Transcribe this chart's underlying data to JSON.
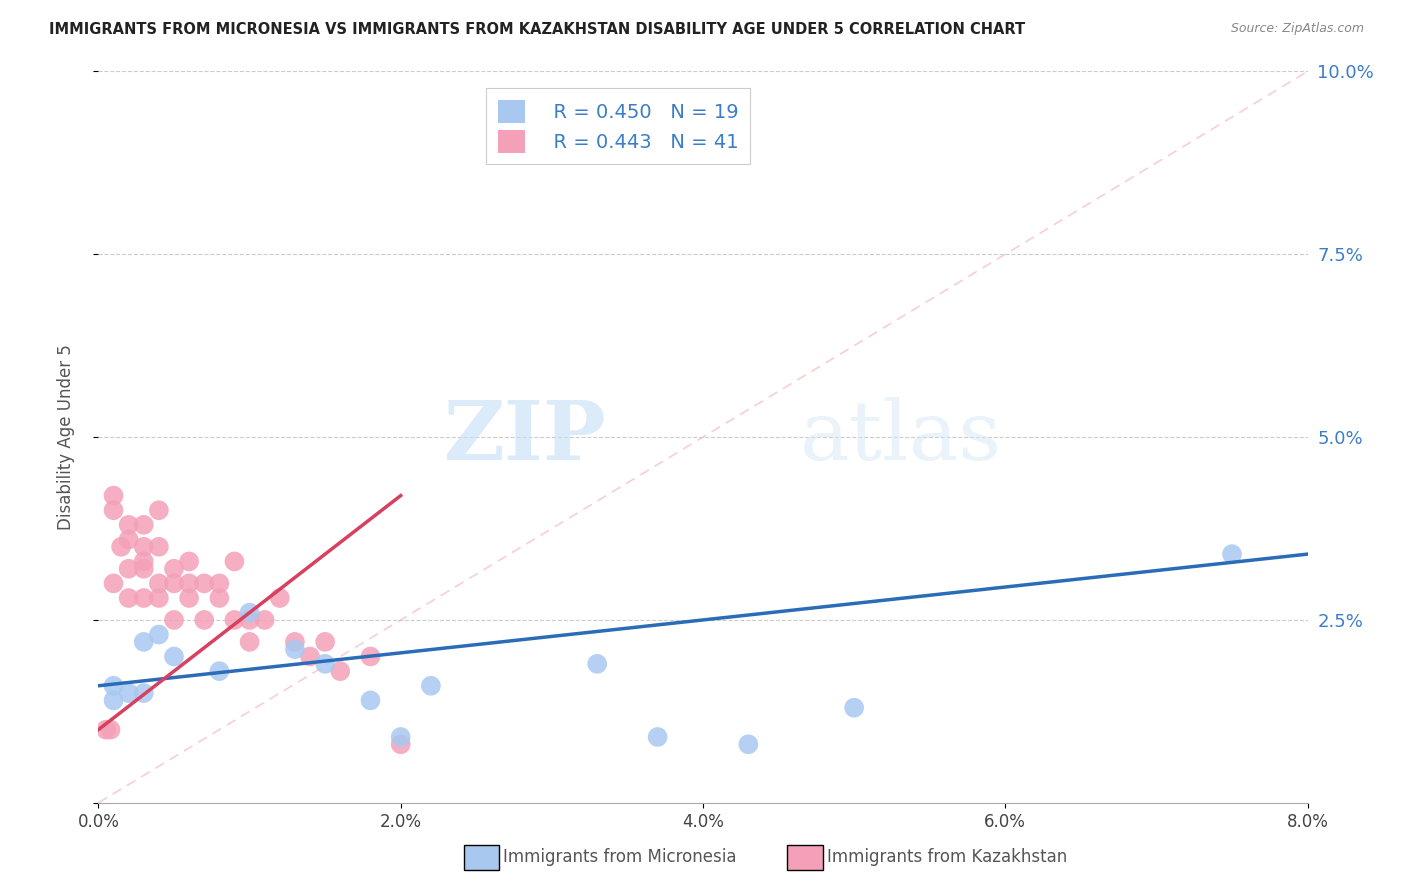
{
  "title": "IMMIGRANTS FROM MICRONESIA VS IMMIGRANTS FROM KAZAKHSTAN DISABILITY AGE UNDER 5 CORRELATION CHART",
  "source": "Source: ZipAtlas.com",
  "ylabel": "Disability Age Under 5",
  "xlim": [
    0.0,
    0.08
  ],
  "ylim": [
    0.0,
    0.1
  ],
  "xticks": [
    0.0,
    0.02,
    0.04,
    0.06,
    0.08
  ],
  "yticks": [
    0.0,
    0.025,
    0.05,
    0.075,
    0.1
  ],
  "xtick_labels": [
    "0.0%",
    "2.0%",
    "4.0%",
    "6.0%",
    "8.0%"
  ],
  "right_ytick_labels": [
    "",
    "2.5%",
    "5.0%",
    "7.5%",
    "10.0%"
  ],
  "micronesia_color": "#A8C8F0",
  "kazakhstan_color": "#F4A0B8",
  "micronesia_label": "Immigrants from Micronesia",
  "kazakhstan_label": "Immigrants from Kazakhstan",
  "micronesia_R": 0.45,
  "micronesia_N": 19,
  "kazakhstan_R": 0.443,
  "kazakhstan_N": 41,
  "trend_micronesia_color": "#2B6CB8",
  "trend_kazakhstan_color": "#D84060",
  "watermark_color": "#D8EAF8",
  "micronesia_x": [
    0.001,
    0.001,
    0.002,
    0.003,
    0.003,
    0.004,
    0.005,
    0.008,
    0.01,
    0.013,
    0.015,
    0.018,
    0.02,
    0.022,
    0.033,
    0.037,
    0.043,
    0.05,
    0.075
  ],
  "micronesia_y": [
    0.014,
    0.016,
    0.015,
    0.015,
    0.022,
    0.023,
    0.02,
    0.018,
    0.026,
    0.021,
    0.019,
    0.014,
    0.009,
    0.016,
    0.019,
    0.009,
    0.008,
    0.013,
    0.034
  ],
  "kazakhstan_x": [
    0.0005,
    0.0008,
    0.001,
    0.001,
    0.001,
    0.0015,
    0.002,
    0.002,
    0.002,
    0.002,
    0.003,
    0.003,
    0.003,
    0.003,
    0.003,
    0.004,
    0.004,
    0.004,
    0.004,
    0.005,
    0.005,
    0.005,
    0.006,
    0.006,
    0.006,
    0.007,
    0.007,
    0.008,
    0.008,
    0.009,
    0.009,
    0.01,
    0.01,
    0.011,
    0.012,
    0.013,
    0.014,
    0.015,
    0.016,
    0.018,
    0.02
  ],
  "kazakhstan_y": [
    0.01,
    0.01,
    0.04,
    0.042,
    0.03,
    0.035,
    0.036,
    0.032,
    0.028,
    0.038,
    0.033,
    0.035,
    0.028,
    0.032,
    0.038,
    0.035,
    0.03,
    0.028,
    0.04,
    0.032,
    0.03,
    0.025,
    0.03,
    0.033,
    0.028,
    0.03,
    0.025,
    0.03,
    0.028,
    0.025,
    0.033,
    0.025,
    0.022,
    0.025,
    0.028,
    0.022,
    0.02,
    0.022,
    0.018,
    0.02,
    0.008
  ],
  "trend_mic_x0": 0.0,
  "trend_mic_x1": 0.08,
  "trend_mic_y0": 0.016,
  "trend_mic_y1": 0.034,
  "trend_kaz_x0": 0.0,
  "trend_kaz_x1": 0.02,
  "trend_kaz_y0": 0.01,
  "trend_kaz_y1": 0.042,
  "ref_line_x": [
    0.0,
    0.08
  ],
  "ref_line_y": [
    0.0,
    0.1
  ]
}
